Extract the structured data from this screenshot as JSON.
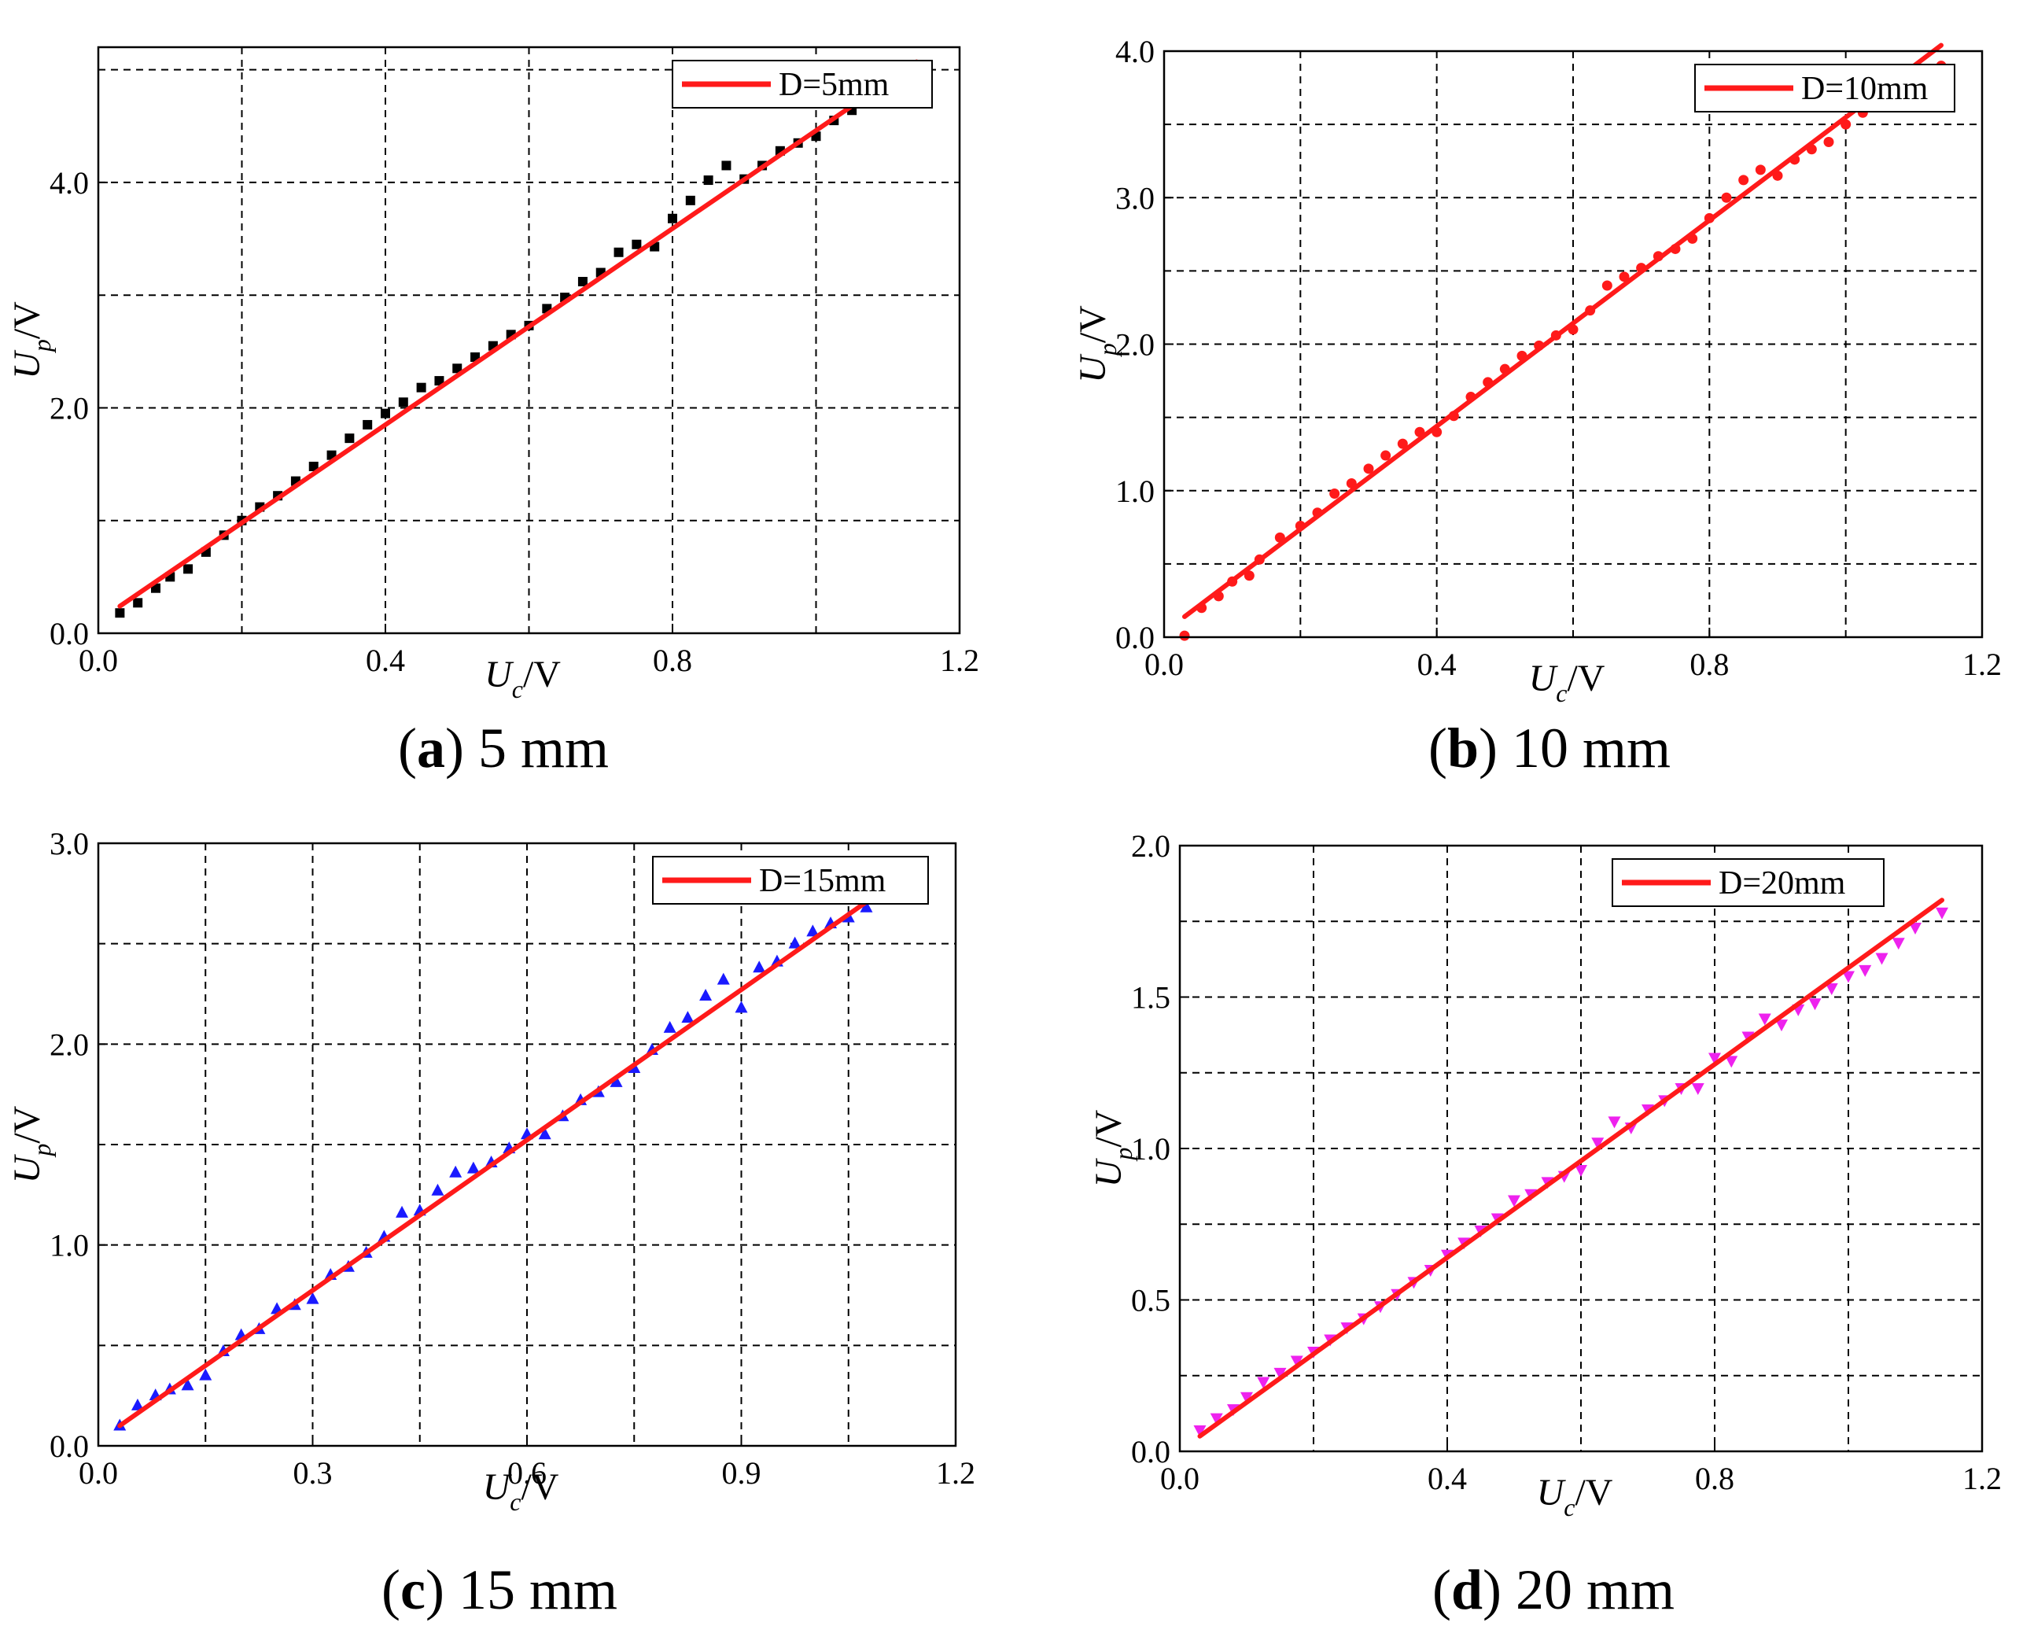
{
  "colors": {
    "fit_line": "#ff1a1a",
    "grid": "#000000"
  },
  "chart_data": [
    {
      "type": "scatter",
      "panel": "a",
      "caption_letter": "a",
      "caption_text": " 5 mm",
      "xlabel": {
        "main": "U",
        "sub": "c",
        "unit": "/V"
      },
      "ylabel": {
        "main": "U",
        "sub": "p",
        "unit": "/V"
      },
      "xlim": [
        0,
        1.2
      ],
      "ylim": [
        0,
        5.2
      ],
      "x_ticks": [
        0.0,
        0.4,
        0.8,
        1.2
      ],
      "x_tick_labels": [
        "0.0",
        "0.4",
        "0.8",
        "1.2"
      ],
      "x_grid": [
        0.2,
        0.4,
        0.6,
        0.8,
        1.0
      ],
      "y_ticks": [
        0.0,
        2.0,
        4.0
      ],
      "y_tick_labels": [
        "0.0",
        "2.0",
        "4.0"
      ],
      "y_grid": [
        1.0,
        2.0,
        3.0,
        4.0,
        5.0
      ],
      "grid": true,
      "legend_position": "top-right",
      "series": [
        {
          "name": "",
          "marker": "square",
          "color": "#000000",
          "x": [
            0.03,
            0.055,
            0.08,
            0.1,
            0.125,
            0.15,
            0.175,
            0.2,
            0.225,
            0.25,
            0.275,
            0.3,
            0.325,
            0.35,
            0.375,
            0.4,
            0.425,
            0.45,
            0.475,
            0.5,
            0.525,
            0.55,
            0.575,
            0.6,
            0.625,
            0.65,
            0.675,
            0.7,
            0.725,
            0.75,
            0.775,
            0.8,
            0.825,
            0.85,
            0.875,
            0.9,
            0.925,
            0.95,
            0.975,
            1.0,
            1.025,
            1.05,
            1.075,
            1.1,
            1.14
          ],
          "y": [
            0.18,
            0.27,
            0.4,
            0.5,
            0.57,
            0.72,
            0.87,
            1.0,
            1.12,
            1.22,
            1.35,
            1.48,
            1.58,
            1.73,
            1.85,
            1.95,
            2.05,
            2.18,
            2.24,
            2.35,
            2.45,
            2.55,
            2.65,
            2.73,
            2.88,
            2.98,
            3.12,
            3.2,
            3.38,
            3.45,
            3.43,
            3.68,
            3.84,
            4.02,
            4.15,
            4.03,
            4.15,
            4.28,
            4.35,
            4.41,
            4.55,
            4.64,
            4.72,
            4.88,
            5.03
          ]
        },
        {
          "name": "D=5mm",
          "type": "line",
          "color": "#ff1a1a",
          "x": [
            0.03,
            1.14
          ],
          "y": [
            0.24,
            5.07
          ]
        }
      ]
    },
    {
      "type": "scatter",
      "panel": "b",
      "caption_letter": "b",
      "caption_text": " 10 mm",
      "xlabel": {
        "main": "U",
        "sub": "c",
        "unit": "/V"
      },
      "ylabel": {
        "main": "U",
        "sub": "p",
        "unit": "/V"
      },
      "xlim": [
        0,
        1.2
      ],
      "ylim": [
        0,
        4.0
      ],
      "x_ticks": [
        0.0,
        0.4,
        0.8,
        1.2
      ],
      "x_tick_labels": [
        "0.0",
        "0.4",
        "0.8",
        "1.2"
      ],
      "x_grid": [
        0.2,
        0.4,
        0.6,
        0.8,
        1.0
      ],
      "y_ticks": [
        0.0,
        1.0,
        2.0,
        3.0,
        4.0
      ],
      "y_tick_labels": [
        "0.0",
        "1.0",
        "2.0",
        "3.0",
        "4.0"
      ],
      "y_grid": [
        0.5,
        1.0,
        1.5,
        2.0,
        2.5,
        3.0,
        3.5
      ],
      "grid": true,
      "legend_position": "top-right",
      "series": [
        {
          "name": "",
          "marker": "circle",
          "color": "#ff1a1a",
          "x": [
            0.03,
            0.055,
            0.08,
            0.1,
            0.125,
            0.14,
            0.17,
            0.2,
            0.225,
            0.25,
            0.275,
            0.3,
            0.325,
            0.35,
            0.375,
            0.4,
            0.425,
            0.45,
            0.475,
            0.5,
            0.525,
            0.55,
            0.575,
            0.6,
            0.625,
            0.65,
            0.675,
            0.7,
            0.725,
            0.75,
            0.775,
            0.8,
            0.825,
            0.85,
            0.875,
            0.9,
            0.925,
            0.95,
            0.975,
            1.0,
            1.025,
            1.05,
            1.075,
            1.1,
            1.14
          ],
          "y": [
            0.01,
            0.2,
            0.28,
            0.38,
            0.42,
            0.53,
            0.68,
            0.76,
            0.85,
            0.98,
            1.05,
            1.15,
            1.24,
            1.32,
            1.4,
            1.4,
            1.51,
            1.64,
            1.74,
            1.83,
            1.92,
            1.99,
            2.06,
            2.1,
            2.23,
            2.4,
            2.46,
            2.52,
            2.6,
            2.65,
            2.72,
            2.86,
            3.0,
            3.12,
            3.19,
            3.15,
            3.26,
            3.33,
            3.38,
            3.5,
            3.58,
            3.68,
            3.75,
            3.86,
            3.9
          ]
        },
        {
          "name": "D=10mm",
          "type": "line",
          "color": "#ff1a1a",
          "x": [
            0.03,
            1.14
          ],
          "y": [
            0.14,
            4.04
          ]
        }
      ]
    },
    {
      "type": "scatter",
      "panel": "c",
      "caption_letter": "c",
      "caption_text": " 15 mm",
      "xlabel": {
        "main": "U",
        "sub": "c",
        "unit": "/V"
      },
      "ylabel": {
        "main": "U",
        "sub": "p",
        "unit": "/V"
      },
      "xlim": [
        0,
        1.2
      ],
      "ylim": [
        0,
        3.0
      ],
      "x_ticks": [
        0.0,
        0.3,
        0.6,
        0.9,
        1.2
      ],
      "x_tick_labels": [
        "0.0",
        "0.3",
        "0.6",
        "0.9",
        "1.2"
      ],
      "x_grid": [
        0.15,
        0.3,
        0.45,
        0.6,
        0.75,
        0.9,
        1.05
      ],
      "y_ticks": [
        0.0,
        1.0,
        2.0,
        3.0
      ],
      "y_tick_labels": [
        "0.0",
        "1.0",
        "2.0",
        "3.0"
      ],
      "y_grid": [
        0.5,
        1.0,
        1.5,
        2.0,
        2.5
      ],
      "grid": true,
      "legend_position": "top-right",
      "series": [
        {
          "name": "",
          "marker": "triangle-up",
          "color": "#1a1aff",
          "x": [
            0.03,
            0.055,
            0.08,
            0.1,
            0.125,
            0.15,
            0.175,
            0.2,
            0.225,
            0.25,
            0.275,
            0.3,
            0.325,
            0.35,
            0.375,
            0.4,
            0.425,
            0.45,
            0.475,
            0.5,
            0.525,
            0.55,
            0.575,
            0.6,
            0.625,
            0.65,
            0.675,
            0.7,
            0.725,
            0.75,
            0.775,
            0.8,
            0.825,
            0.85,
            0.875,
            0.9,
            0.925,
            0.95,
            0.975,
            1.0,
            1.025,
            1.05,
            1.075,
            1.1,
            1.14
          ],
          "y": [
            0.1,
            0.2,
            0.25,
            0.28,
            0.3,
            0.35,
            0.47,
            0.55,
            0.58,
            0.68,
            0.7,
            0.73,
            0.85,
            0.89,
            0.96,
            1.04,
            1.16,
            1.17,
            1.27,
            1.36,
            1.38,
            1.41,
            1.48,
            1.55,
            1.55,
            1.64,
            1.72,
            1.76,
            1.81,
            1.88,
            1.97,
            2.08,
            2.13,
            2.24,
            2.32,
            2.18,
            2.38,
            2.41,
            2.5,
            2.56,
            2.6,
            2.63,
            2.68,
            2.75,
            2.84
          ]
        },
        {
          "name": "D=15mm",
          "type": "line",
          "color": "#ff1a1a",
          "x": [
            0.03,
            1.14
          ],
          "y": [
            0.1,
            2.87
          ]
        }
      ]
    },
    {
      "type": "scatter",
      "panel": "d",
      "caption_letter": "d",
      "caption_text": " 20 mm",
      "xlabel": {
        "main": "U",
        "sub": "c",
        "unit": "/V"
      },
      "ylabel": {
        "main": "U",
        "sub": "p",
        "unit": "/V"
      },
      "xlim": [
        0,
        1.2
      ],
      "ylim": [
        0,
        2.0
      ],
      "x_ticks": [
        0.0,
        0.4,
        0.8,
        1.2
      ],
      "x_tick_labels": [
        "0.0",
        "0.4",
        "0.8",
        "1.2"
      ],
      "x_grid": [
        0.2,
        0.4,
        0.6,
        0.8,
        1.0
      ],
      "y_ticks": [
        0.0,
        0.5,
        1.0,
        1.5,
        2.0
      ],
      "y_tick_labels": [
        "0.0",
        "0.5",
        "1.0",
        "1.5",
        "2.0"
      ],
      "y_grid": [
        0.25,
        0.5,
        0.75,
        1.0,
        1.25,
        1.5,
        1.75
      ],
      "grid": true,
      "legend_position": "top-right",
      "series": [
        {
          "name": "",
          "marker": "triangle-down",
          "color": "#ee22ee",
          "x": [
            0.03,
            0.055,
            0.08,
            0.1,
            0.125,
            0.15,
            0.175,
            0.2,
            0.225,
            0.25,
            0.275,
            0.3,
            0.325,
            0.35,
            0.375,
            0.4,
            0.425,
            0.45,
            0.475,
            0.5,
            0.525,
            0.55,
            0.575,
            0.6,
            0.625,
            0.65,
            0.675,
            0.7,
            0.725,
            0.75,
            0.775,
            0.8,
            0.825,
            0.85,
            0.875,
            0.9,
            0.925,
            0.95,
            0.975,
            1.0,
            1.025,
            1.05,
            1.075,
            1.1,
            1.14
          ],
          "y": [
            0.07,
            0.11,
            0.14,
            0.18,
            0.23,
            0.26,
            0.3,
            0.33,
            0.37,
            0.41,
            0.44,
            0.48,
            0.52,
            0.56,
            0.6,
            0.65,
            0.69,
            0.73,
            0.77,
            0.83,
            0.85,
            0.89,
            0.91,
            0.93,
            1.02,
            1.09,
            1.07,
            1.13,
            1.16,
            1.2,
            1.2,
            1.3,
            1.29,
            1.37,
            1.43,
            1.41,
            1.46,
            1.48,
            1.53,
            1.57,
            1.59,
            1.63,
            1.68,
            1.73,
            1.78
          ]
        },
        {
          "name": "D=20mm",
          "type": "line",
          "color": "#ff1a1a",
          "x": [
            0.03,
            1.14
          ],
          "y": [
            0.05,
            1.82
          ]
        }
      ]
    }
  ]
}
